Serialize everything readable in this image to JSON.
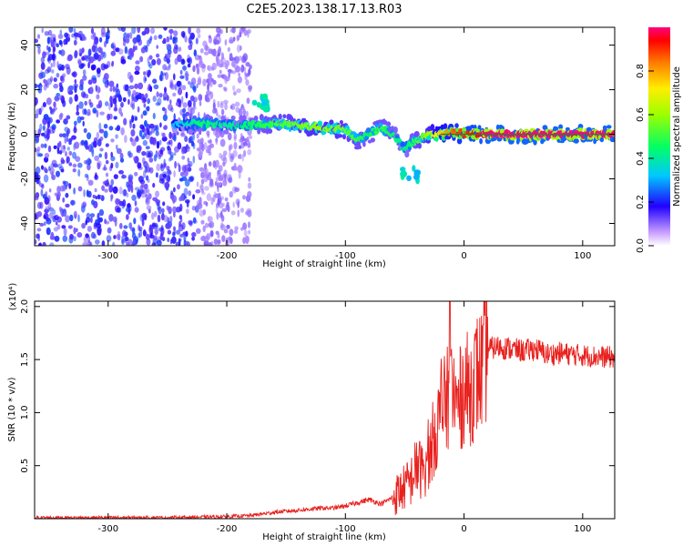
{
  "figure_title": "C2E5.2023.138.17.13.R03",
  "colors": {
    "ridge_line": "#2a7d2a",
    "snr_line": "#e8211e",
    "scatter_purple": "#7a1ff0"
  },
  "chart_data": [
    {
      "type": "heatmap",
      "title": "C2E5.2023.138.17.13.R03",
      "xlabel": "Height of straight line (km)",
      "ylabel": "Frequency (Hz)",
      "xlim": [
        -362,
        127
      ],
      "ylim": [
        -50,
        48
      ],
      "x_ticks": [
        -300,
        -200,
        -100,
        0,
        100
      ],
      "x_tick_labels": [
        "-300",
        "-200",
        "-100",
        "0",
        "100"
      ],
      "y_ticks": [
        -40,
        -20,
        0,
        20,
        40
      ],
      "y_tick_labels": [
        "-40",
        "-20",
        "0",
        "20",
        "40"
      ],
      "colorbar": {
        "label": "Normalized spectral amplitude",
        "range": [
          0,
          1
        ],
        "ticks": [
          0.0,
          0.2,
          0.4,
          0.6,
          0.8
        ],
        "tick_labels": [
          "0.0",
          "0.2",
          "0.4",
          "0.6",
          "0.8"
        ],
        "colormap": "rainbow"
      },
      "features": [
        {
          "region": "noise",
          "x_range": [
            -362,
            -225
          ],
          "y_range": [
            -50,
            48
          ],
          "amplitude": 0.15
        },
        {
          "region": "noise-light",
          "x_range": [
            -225,
            -180
          ],
          "y_range": [
            -50,
            48
          ],
          "amplitude": 0.05
        },
        {
          "region": "blob",
          "x": -172,
          "y": 14,
          "amplitude": 0.3
        },
        {
          "region": "blob",
          "x": -45,
          "y": -18,
          "amplitude": 0.3
        }
      ],
      "ridge": {
        "x": [
          -245,
          -220,
          -200,
          -180,
          -160,
          -140,
          -120,
          -100,
          -90,
          -80,
          -70,
          -60,
          -50,
          -45,
          -40,
          -30,
          -20,
          -10,
          0,
          20,
          50,
          80,
          127
        ],
        "y": [
          4,
          5,
          4,
          4,
          5,
          4,
          3,
          2,
          -3,
          0,
          3,
          0,
          -7,
          -4,
          -3,
          0,
          0,
          1,
          0,
          0,
          0,
          0,
          0
        ],
        "amplitude": [
          0.3,
          0.45,
          0.4,
          0.45,
          0.5,
          0.55,
          0.6,
          0.55,
          0.5,
          0.45,
          0.5,
          0.45,
          0.4,
          0.45,
          0.5,
          0.6,
          0.75,
          0.85,
          0.9,
          1.0,
          1.0,
          1.0,
          1.0
        ]
      }
    },
    {
      "type": "line",
      "title": "",
      "xlabel": "Height of straight line (km)",
      "ylabel": "SNR (10 * v/v)",
      "y_scale_label": "(x10⁴)",
      "xlim": [
        -362,
        127
      ],
      "ylim": [
        0,
        2.05
      ],
      "x_ticks": [
        -300,
        -200,
        -100,
        0,
        100
      ],
      "x_tick_labels": [
        "-300",
        "-200",
        "-100",
        "0",
        "100"
      ],
      "y_ticks": [
        0.5,
        1.0,
        1.5,
        2.0
      ],
      "y_tick_labels": [
        "0.5",
        "1.0",
        "1.5",
        "2.0"
      ],
      "series": [
        {
          "name": "",
          "x": [
            -362,
            -300,
            -250,
            -200,
            -180,
            -160,
            -140,
            -120,
            -110,
            -100,
            -90,
            -80,
            -70,
            -60,
            -50,
            -45,
            -40,
            -35,
            -30,
            -25,
            -20,
            -15,
            -10,
            -5,
            0,
            5,
            10,
            15,
            20,
            30,
            40,
            50,
            60,
            70,
            80,
            90,
            100,
            110,
            127
          ],
          "y": [
            0.01,
            0.01,
            0.01,
            0.02,
            0.03,
            0.06,
            0.08,
            0.1,
            0.1,
            0.12,
            0.15,
            0.18,
            0.14,
            0.2,
            0.3,
            0.35,
            0.5,
            0.45,
            0.55,
            0.8,
            0.95,
            1.1,
            1.2,
            1.05,
            1.25,
            1.2,
            1.35,
            1.4,
            1.6,
            1.62,
            1.6,
            1.58,
            1.6,
            1.55,
            1.56,
            1.55,
            1.54,
            1.53,
            1.52
          ]
        }
      ]
    }
  ]
}
